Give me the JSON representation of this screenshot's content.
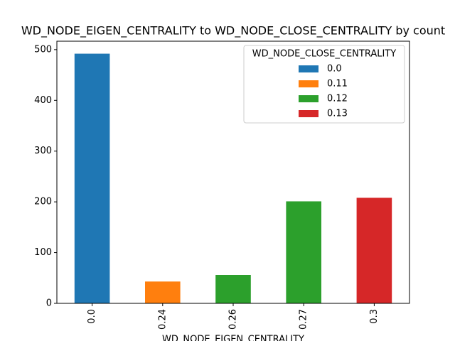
{
  "chart_data": {
    "type": "bar",
    "stacked": true,
    "title": "WD_NODE_EIGEN_CENTRALITY to WD_NODE_CLOSE_CENTRALITY by count",
    "x_label": "WD_NODE_EIGEN_CENTRALITY",
    "legend_title": "WD_NODE_CLOSE_CENTRALITY",
    "legend_position": "upper right",
    "categories": [
      "0.0",
      "0.24",
      "0.26",
      "0.27",
      "0.3"
    ],
    "series": [
      {
        "name": "0.0",
        "color": "#1f77b4",
        "values": [
          492,
          0,
          0,
          0,
          0
        ]
      },
      {
        "name": "0.11",
        "color": "#ff7f0e",
        "values": [
          0,
          43,
          0,
          0,
          0
        ]
      },
      {
        "name": "0.12",
        "color": "#2ca02c",
        "values": [
          0,
          0,
          56,
          201,
          0
        ]
      },
      {
        "name": "0.13",
        "color": "#d62728",
        "values": [
          0,
          0,
          0,
          0,
          208
        ]
      }
    ],
    "ylim": [
      0,
      516.6
    ],
    "yticks": [
      0,
      100,
      200,
      300,
      400,
      500
    ]
  }
}
